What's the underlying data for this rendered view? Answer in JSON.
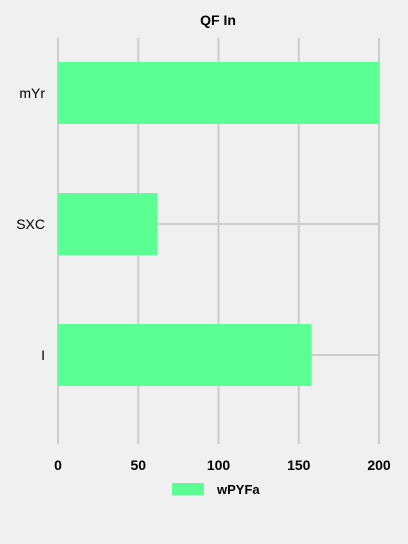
{
  "chart_data": {
    "type": "bar",
    "orientation": "horizontal",
    "title": "QF  In",
    "categories": [
      "mYr",
      "SXC",
      "I"
    ],
    "series": [
      {
        "name": "wPYFa",
        "values": [
          200,
          62,
          158
        ]
      }
    ],
    "xlim": [
      0,
      200
    ],
    "xticks": [
      "0",
      "50",
      "100",
      "150",
      "200"
    ],
    "xlabel": "",
    "ylabel": "",
    "grid": true,
    "legend_position": "bottom",
    "colors": {
      "bar": "#5cff94",
      "grid": "#cccccc",
      "background": "#f0f0f0"
    }
  }
}
